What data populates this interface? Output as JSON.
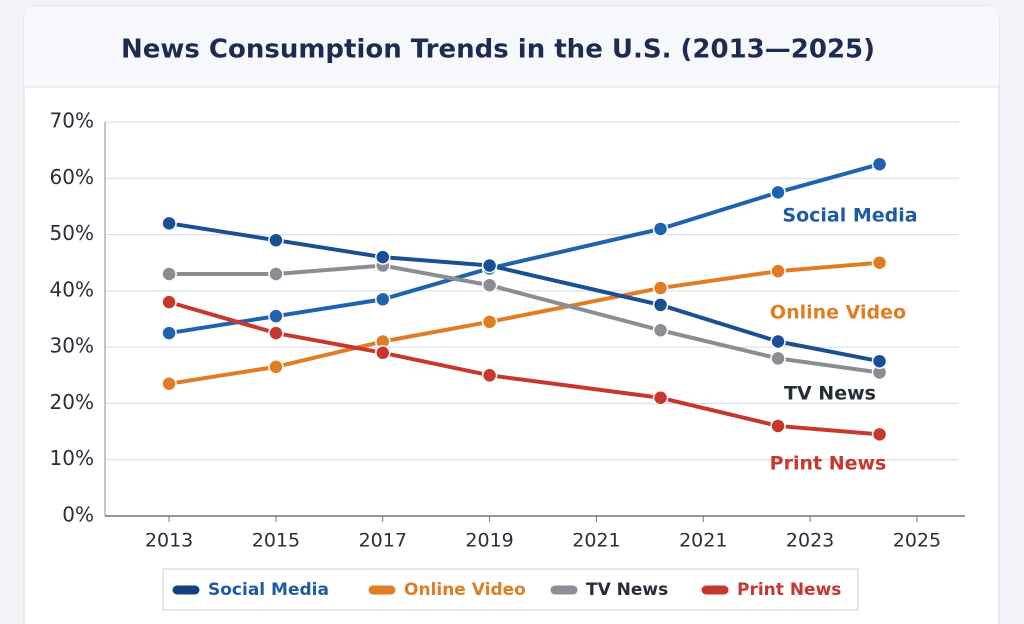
{
  "chart_data": {
    "type": "line",
    "title": "News Consumption Trends in the U.S. (2013—2025)",
    "x": [
      0,
      1,
      2,
      3,
      4.6,
      5.7,
      6.65
    ],
    "xlim": [
      -0.6,
      7.45
    ],
    "xticks": [
      {
        "value": 0,
        "label": "2013"
      },
      {
        "value": 1,
        "label": "2015"
      },
      {
        "value": 2,
        "label": "2017"
      },
      {
        "value": 3,
        "label": "2019"
      },
      {
        "value": 4,
        "label": "2021"
      },
      {
        "value": 5,
        "label": "2021"
      },
      {
        "value": 6,
        "label": "2023"
      },
      {
        "value": 7,
        "label": "2025"
      }
    ],
    "ylim": [
      0,
      70
    ],
    "yticks": [
      {
        "value": 0,
        "label": "0%"
      },
      {
        "value": 10,
        "label": "10%"
      },
      {
        "value": 20,
        "label": "20%"
      },
      {
        "value": 30,
        "label": "30%"
      },
      {
        "value": 40,
        "label": "40%"
      },
      {
        "value": 50,
        "label": "50%"
      },
      {
        "value": 60,
        "label": "60%"
      },
      {
        "value": 70,
        "label": "70%"
      }
    ],
    "grid": true,
    "legend": "bottom",
    "series": [
      {
        "name": "Social Media",
        "color": "#1f62ad",
        "legend_color": "#153f80",
        "label_color": "#1f5aa3",
        "values": [
          32.5,
          35.5,
          38.5,
          44,
          51,
          57.5,
          62.5
        ]
      },
      {
        "name": "Online Video",
        "color": "#e07d22",
        "label_color": "#e07d22",
        "values": [
          23.5,
          26.5,
          31,
          34.5,
          40.5,
          43.5,
          45
        ]
      },
      {
        "name": "TV News",
        "color": "#8a8d93",
        "label_color": "#262c3a",
        "values": [
          43,
          43,
          44.5,
          41,
          33,
          28,
          25.5
        ]
      },
      {
        "name": "Print News",
        "color": "#c8372d",
        "label_color": "#c8372d",
        "values": [
          38,
          32.5,
          29,
          25,
          21,
          16,
          14.5
        ]
      },
      {
        "color": "#1a4f95",
        "values": [
          52,
          49,
          46,
          44.5,
          37.5,
          31,
          27.5
        ]
      }
    ]
  }
}
